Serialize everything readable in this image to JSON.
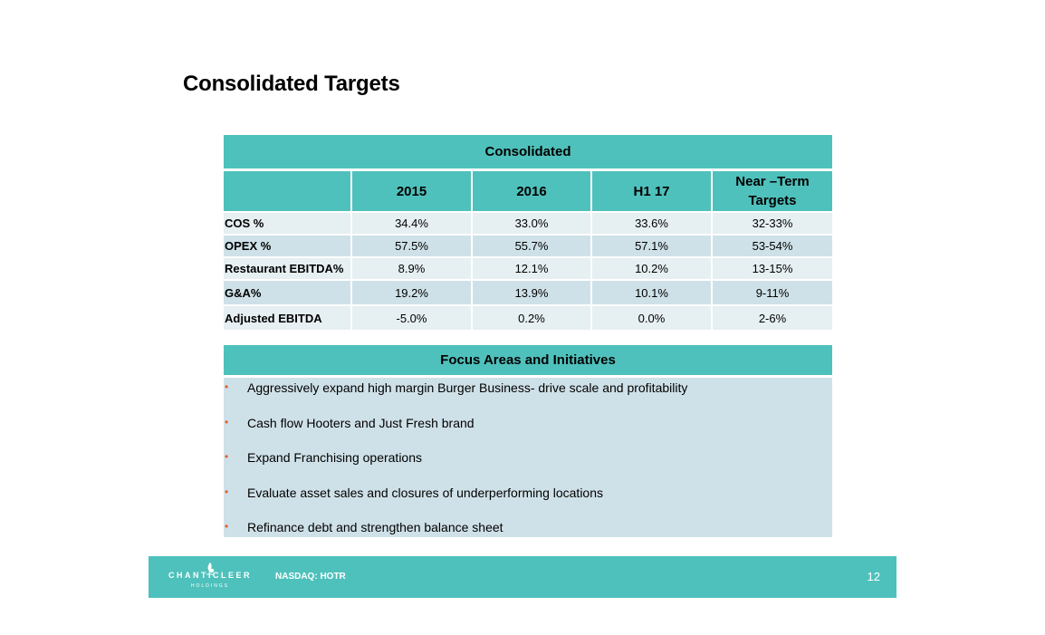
{
  "title": "Consolidated Targets",
  "table": {
    "header": "Consolidated",
    "columns": [
      "",
      "2015",
      "2016",
      "H1 17",
      "Near –Term Targets"
    ],
    "rows": [
      {
        "label": "COS %",
        "values": [
          "34.4%",
          "33.0%",
          "33.6%",
          "32-33%"
        ]
      },
      {
        "label": "OPEX %",
        "values": [
          "57.5%",
          "55.7%",
          "57.1%",
          "53-54%"
        ]
      },
      {
        "label": "Restaurant EBITDA%",
        "values": [
          "8.9%",
          "12.1%",
          "10.2%",
          "13-15%"
        ]
      },
      {
        "label": "G&A%",
        "values": [
          "19.2%",
          "13.9%",
          "10.1%",
          "9-11%"
        ]
      },
      {
        "label": "Adjusted EBITDA",
        "values": [
          "-5.0%",
          "0.2%",
          "0.0%",
          "2-6%"
        ]
      }
    ]
  },
  "focus": {
    "header": "Focus Areas and Initiatives",
    "bullet_char": "•",
    "items": [
      "Aggressively expand high margin Burger Business- drive scale and profitability",
      "Cash flow Hooters and Just Fresh brand",
      "Expand Franchising operations",
      "Evaluate asset sales and closures of underperforming locations",
      "Refinance debt and strengthen balance sheet"
    ]
  },
  "footer": {
    "logo_name": "CHANTICLEER",
    "logo_sub": "HOLDINGS",
    "ticker": "NASDAQ: HOTR",
    "page_number": "12"
  },
  "colors": {
    "accent": "#4fc1bc",
    "row_light": "#e6eff2",
    "row_dark": "#cfe1e8",
    "bullet": "#e0622a"
  }
}
